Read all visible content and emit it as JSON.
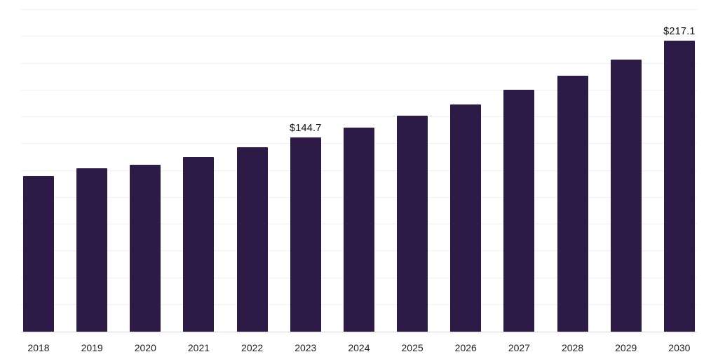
{
  "chart_data": {
    "type": "bar",
    "title": "",
    "categories": [
      "2018",
      "2019",
      "2020",
      "2021",
      "2022",
      "2023",
      "2024",
      "2025",
      "2026",
      "2027",
      "2028",
      "2029",
      "2030"
    ],
    "values": [
      116.0,
      121.7,
      124.5,
      130.0,
      137.4,
      144.7,
      152.2,
      161.0,
      169.5,
      180.5,
      191.0,
      203.0,
      217.1
    ],
    "data_labels": [
      "",
      "",
      "",
      "",
      "",
      "$144.7",
      "",
      "",
      "",
      "",
      "",
      "",
      "$217.1"
    ],
    "xlabel": "",
    "ylabel": "",
    "ylim": [
      0,
      240
    ],
    "gridline_step": 20,
    "grid": true,
    "legend_position": "none",
    "bar_color": "#2e1a47",
    "gridline_color": "#f0f0f0",
    "axis_line_color": "#d8d8d8",
    "label_text_color": "#111111",
    "tick_text_color": "#222222"
  }
}
